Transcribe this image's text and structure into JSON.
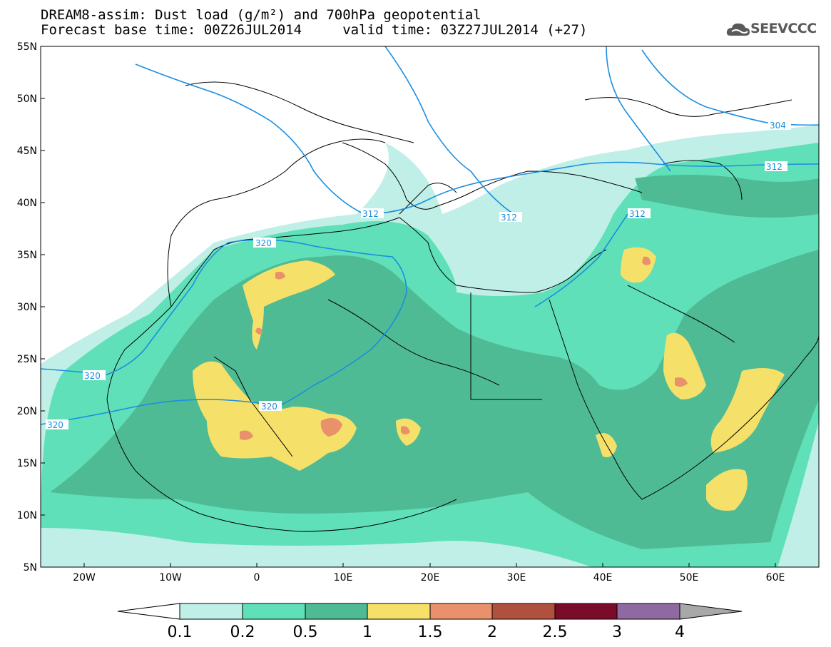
{
  "header": {
    "line1": "DREAM8-assim: Dust load (g/m²) and 700hPa geopotential",
    "line2": "Forecast base time: 00Z26JUL2014     valid time: 03Z27JUL2014 (+27)"
  },
  "logo": {
    "text": "SEEVCCC",
    "icon": "cloud-logo-icon"
  },
  "map": {
    "lon_range": [
      -25,
      65
    ],
    "lat_range": [
      5,
      55
    ],
    "lat_ticks": [
      "5N",
      "10N",
      "15N",
      "20N",
      "25N",
      "30N",
      "35N",
      "40N",
      "45N",
      "50N",
      "55N"
    ],
    "lon_ticks": [
      "20W",
      "10W",
      "0",
      "10E",
      "20E",
      "30E",
      "40E",
      "50E",
      "60E"
    ],
    "contour_color": "#1a8fe0",
    "contour_labels": [
      "320",
      "320",
      "320",
      "320",
      "312",
      "312",
      "312",
      "312",
      "304"
    ]
  },
  "colorbar": {
    "labels": [
      "0.1",
      "0.2",
      "0.5",
      "1",
      "1.5",
      "2",
      "2.5",
      "3",
      "4"
    ],
    "colors": [
      "#bfefe6",
      "#5fe0b8",
      "#4fbb94",
      "#f5e06a",
      "#e8916a",
      "#b0503f",
      "#7a0c2a",
      "#8e6aa0"
    ],
    "arrow_colors": {
      "low": "#ffffff",
      "high": "#a8a8a8"
    }
  }
}
